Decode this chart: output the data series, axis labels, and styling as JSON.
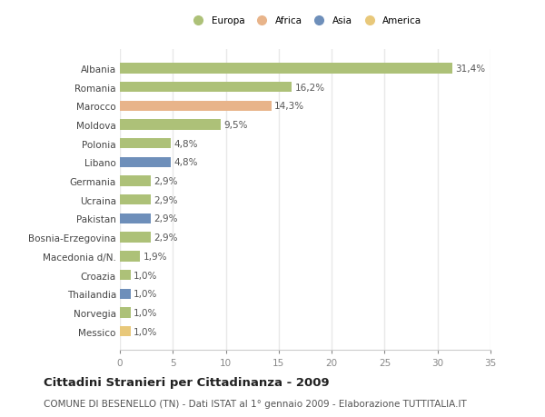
{
  "categories": [
    "Albania",
    "Romania",
    "Marocco",
    "Moldova",
    "Polonia",
    "Libano",
    "Germania",
    "Ucraina",
    "Pakistan",
    "Bosnia-Erzegovina",
    "Macedonia d/N.",
    "Croazia",
    "Thailandia",
    "Norvegia",
    "Messico"
  ],
  "values": [
    31.4,
    16.2,
    14.3,
    9.5,
    4.8,
    4.8,
    2.9,
    2.9,
    2.9,
    2.9,
    1.9,
    1.0,
    1.0,
    1.0,
    1.0
  ],
  "labels": [
    "31,4%",
    "16,2%",
    "14,3%",
    "9,5%",
    "4,8%",
    "4,8%",
    "2,9%",
    "2,9%",
    "2,9%",
    "2,9%",
    "1,9%",
    "1,0%",
    "1,0%",
    "1,0%",
    "1,0%"
  ],
  "colors": [
    "#adc178",
    "#adc178",
    "#e8b48a",
    "#adc178",
    "#adc178",
    "#6e8fba",
    "#adc178",
    "#adc178",
    "#6e8fba",
    "#adc178",
    "#adc178",
    "#adc178",
    "#6e8fba",
    "#adc178",
    "#e8c87a"
  ],
  "legend": [
    {
      "label": "Europa",
      "color": "#adc178"
    },
    {
      "label": "Africa",
      "color": "#e8b48a"
    },
    {
      "label": "Asia",
      "color": "#6e8fba"
    },
    {
      "label": "America",
      "color": "#e8c87a"
    }
  ],
  "xlim": [
    0,
    35
  ],
  "xticks": [
    0,
    5,
    10,
    15,
    20,
    25,
    30,
    35
  ],
  "title": "Cittadini Stranieri per Cittadinanza - 2009",
  "subtitle": "COMUNE DI BESENELLO (TN) - Dati ISTAT al 1° gennaio 2009 - Elaborazione TUTTITALIA.IT",
  "background_color": "#ffffff",
  "grid_color": "#e8e8e8",
  "bar_height": 0.55,
  "label_fontsize": 7.5,
  "tick_fontsize": 7.5,
  "title_fontsize": 9.5,
  "subtitle_fontsize": 7.5
}
